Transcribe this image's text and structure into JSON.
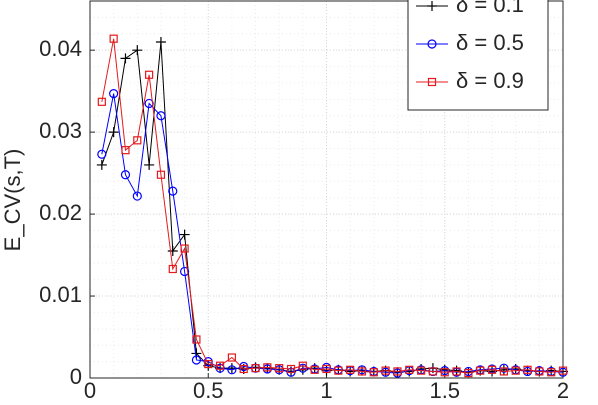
{
  "chart_data": {
    "type": "line",
    "y_label": "E_CV(s,T)",
    "x": [
      0.05,
      0.1,
      0.15,
      0.2,
      0.25,
      0.3,
      0.35,
      0.4,
      0.45,
      0.5,
      0.55,
      0.6,
      0.65,
      0.7,
      0.75,
      0.8,
      0.85,
      0.9,
      0.95,
      1,
      1.05,
      1.1,
      1.15,
      1.2,
      1.25,
      1.3,
      1.35,
      1.4,
      1.45,
      1.5,
      1.55,
      1.6,
      1.65,
      1.7,
      1.75,
      1.8,
      1.85,
      1.9,
      1.95,
      2
    ],
    "series": [
      {
        "name": "δ = 0.1",
        "color": "#000000",
        "marker": "plus",
        "values": [
          0.026,
          0.03,
          0.039,
          0.04,
          0.026,
          0.041,
          0.0155,
          0.0175,
          0.003,
          0.0015,
          0.0012,
          0.0012,
          0.0011,
          0.0013,
          0.0012,
          0.001,
          0.0008,
          0.001,
          0.0012,
          0.0009,
          0.001,
          0.0008,
          0.0009,
          0.0008,
          0.0009,
          0.0007,
          0.0008,
          0.0011,
          0.0012,
          0.001,
          0.0009,
          0.0007,
          0.0009,
          0.0008,
          0.001,
          0.0011,
          0.0009,
          0.0008,
          0.0009,
          0.0008
        ]
      },
      {
        "name": "δ = 0.5",
        "color": "#0000ff",
        "marker": "circle",
        "values": [
          0.0273,
          0.0347,
          0.0248,
          0.0222,
          0.0335,
          0.032,
          0.0228,
          0.013,
          0.0022,
          0.002,
          0.0012,
          0.001,
          0.0014,
          0.0012,
          0.0011,
          0.001,
          0.0007,
          0.0012,
          0.0011,
          0.0013,
          0.001,
          0.0009,
          0.001,
          0.0008,
          0.0007,
          0.0006,
          0.0009,
          0.001,
          0.0008,
          0.0009,
          0.0007,
          0.0008,
          0.001,
          0.0011,
          0.0012,
          0.001,
          0.0008,
          0.0009,
          0.0008,
          0.0007
        ]
      },
      {
        "name": "δ = 0.9",
        "color": "#e41a1c",
        "marker": "square",
        "values": [
          0.0337,
          0.0414,
          0.0278,
          0.029,
          0.037,
          0.0248,
          0.0133,
          0.0158,
          0.0047,
          0.0017,
          0.0015,
          0.0025,
          0.0011,
          0.0012,
          0.0013,
          0.0012,
          0.0011,
          0.0015,
          0.001,
          0.0011,
          0.0009,
          0.001,
          0.0008,
          0.0007,
          0.0009,
          0.0008,
          0.001,
          0.0009,
          0.0008,
          0.0007,
          0.0008,
          0.0006,
          0.0009,
          0.001,
          0.0008,
          0.0009,
          0.001,
          0.0008,
          0.0007,
          0.0009
        ]
      }
    ],
    "xlim": [
      0,
      2
    ],
    "xticks": [
      0,
      0.5,
      1,
      1.5,
      2
    ],
    "ylim": [
      0,
      0.046
    ],
    "yticks": [
      0,
      0.01,
      0.02,
      0.03,
      0.04
    ],
    "grid": true,
    "minor_grid": true,
    "legend": "top-right"
  }
}
